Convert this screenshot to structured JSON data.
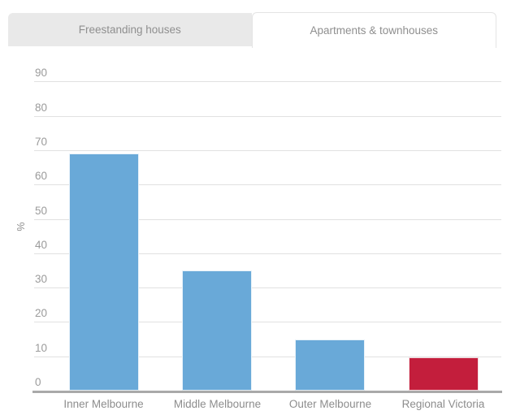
{
  "tabs": [
    {
      "label": "Freestanding houses",
      "active": false
    },
    {
      "label": "Apartments & townhouses",
      "active": true
    }
  ],
  "chart_data": {
    "type": "bar",
    "title": "",
    "xlabel": "",
    "ylabel": "%",
    "categories": [
      "Inner Melbourne",
      "Middle Melbourne",
      "Outer Melbourne",
      "Regional Victoria"
    ],
    "values": [
      69,
      35,
      15,
      9.7
    ],
    "bar_colors": [
      "#69a9d8",
      "#69a9d8",
      "#69a9d8",
      "#c31e3c"
    ],
    "ylim": [
      0,
      90
    ],
    "yticks": [
      0,
      10,
      20,
      30,
      40,
      50,
      60,
      70,
      80,
      90
    ],
    "grid": true,
    "legend": "none",
    "colors": {
      "bar_blue": "#69a9d8",
      "bar_red": "#c31e3c",
      "gridline": "#e1e1e1",
      "axis_line": "#a9a9a9",
      "tick_text": "#9b9b9b",
      "category_text": "#8d8d8d",
      "tab_inactive_bg": "#e9e9e9",
      "tab_border": "#e4e4e4",
      "tab_text": "#8f8f8f"
    }
  }
}
